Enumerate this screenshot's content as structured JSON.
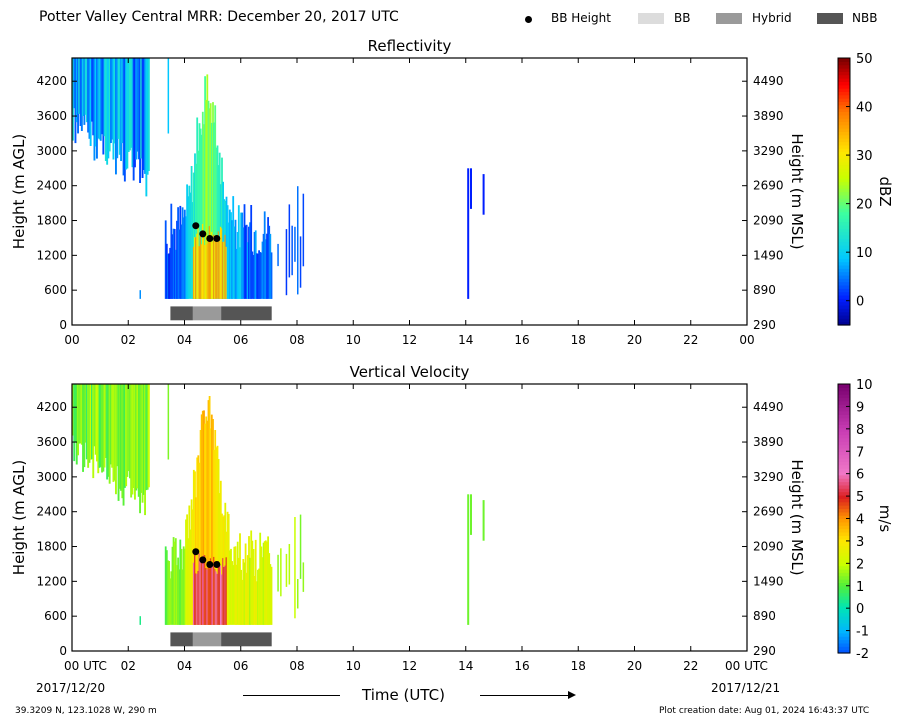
{
  "header": {
    "title": "Potter Valley Central MRR:  December 20, 2017 UTC",
    "legend": [
      {
        "label": "BB Height",
        "kind": "dot",
        "color": "#000000"
      },
      {
        "label": "BB",
        "kind": "swatch",
        "color": "#dcdcdc"
      },
      {
        "label": "Hybrid",
        "kind": "swatch",
        "color": "#9a9a9a"
      },
      {
        "label": "NBB",
        "kind": "swatch",
        "color": "#555555"
      }
    ]
  },
  "footer": {
    "coords": "39.3209 N, 123.1028 W, 290 m",
    "created": "Plot creation date: Aug 01, 2024 16:43:37 UTC",
    "xlabel": "Time (UTC)",
    "date_start": "2017/12/20",
    "date_end": "2017/12/21"
  },
  "chart_data": [
    {
      "type": "heatmap",
      "title": "Reflectivity",
      "ylabel": "Height (m AGL)",
      "ylabel_right": "Height (m MSL)",
      "x_ticks": [
        "00",
        "02",
        "04",
        "06",
        "08",
        "10",
        "12",
        "14",
        "16",
        "18",
        "20",
        "22",
        "00"
      ],
      "xlim": [
        0,
        24
      ],
      "y_ticks": [
        0,
        600,
        1200,
        1800,
        2400,
        3000,
        3600,
        4200
      ],
      "y_ticks_right": [
        290,
        890,
        1490,
        2090,
        2690,
        3290,
        3890,
        4490
      ],
      "ylim": [
        0,
        4600
      ],
      "colorbar": {
        "label": "dBZ",
        "min": -5,
        "max": 50,
        "ticks": [
          0,
          10,
          20,
          30,
          40,
          50
        ]
      },
      "bb_height": {
        "x": [
          4.4,
          4.65,
          4.9,
          5.15
        ],
        "y": [
          1710,
          1570,
          1490,
          1490
        ]
      },
      "bb_type_bar": [
        {
          "type": "NBB",
          "start": 3.5,
          "end": 4.3
        },
        {
          "type": "Hybrid",
          "start": 4.3,
          "end": 5.3
        },
        {
          "type": "NBB",
          "start": 5.3,
          "end": 7.1
        }
      ],
      "grid": false
    },
    {
      "type": "heatmap",
      "title": "Vertical Velocity",
      "ylabel": "Height (m AGL)",
      "ylabel_right": "Height (m MSL)",
      "x_ticks": [
        "00 UTC",
        "02",
        "04",
        "06",
        "08",
        "10",
        "12",
        "14",
        "16",
        "18",
        "20",
        "22",
        "00 UTC"
      ],
      "xlim": [
        0,
        24
      ],
      "y_ticks": [
        0,
        600,
        1200,
        1800,
        2400,
        3000,
        3600,
        4200
      ],
      "y_ticks_right": [
        290,
        890,
        1490,
        2090,
        2690,
        3290,
        3890,
        4490
      ],
      "ylim": [
        0,
        4600
      ],
      "colorbar": {
        "label": "m/s",
        "min": -2,
        "max": 10,
        "ticks": [
          -2,
          -1,
          0,
          1,
          2,
          3,
          4,
          5,
          6,
          7,
          8,
          9,
          10
        ]
      },
      "bb_height": {
        "x": [
          4.4,
          4.65,
          4.9,
          5.15
        ],
        "y": [
          1710,
          1570,
          1490,
          1490
        ]
      },
      "bb_type_bar": [
        {
          "type": "NBB",
          "start": 3.5,
          "end": 4.3
        },
        {
          "type": "Hybrid",
          "start": 4.3,
          "end": 5.3
        },
        {
          "type": "NBB",
          "start": 5.3,
          "end": 7.1
        }
      ],
      "grid": false
    }
  ]
}
